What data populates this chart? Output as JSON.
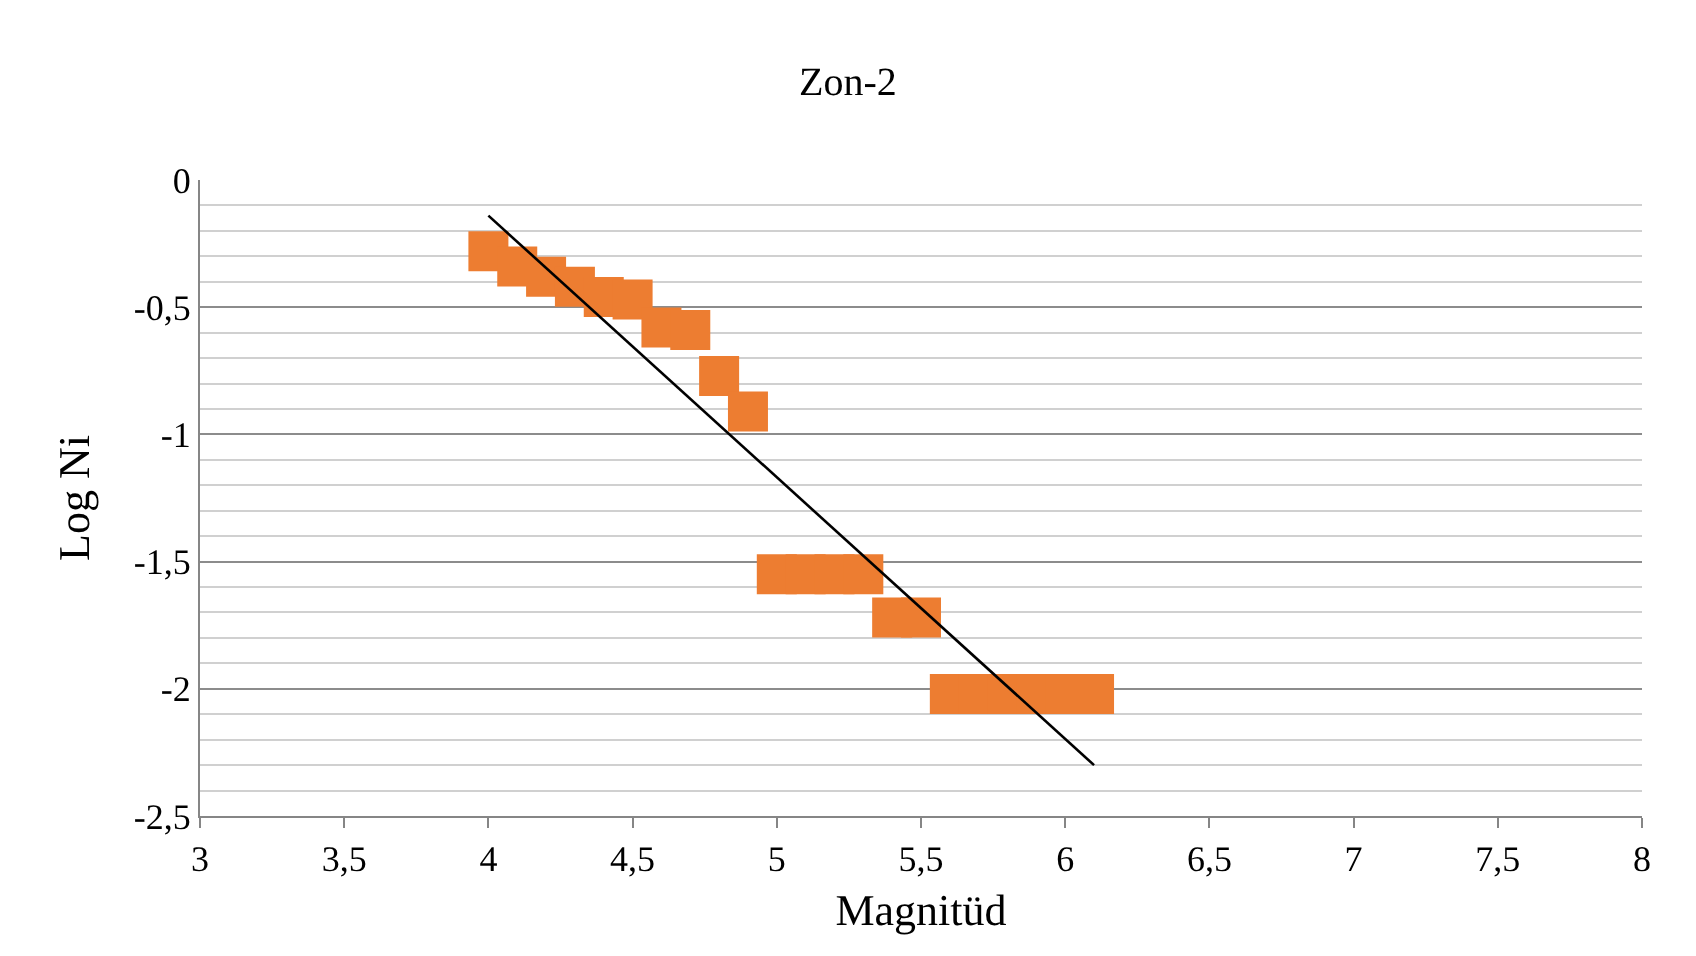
{
  "chart_data": {
    "type": "scatter",
    "title": "Zon-2",
    "xlabel": "Magnitüd",
    "ylabel": "Log Ni",
    "series": [
      {
        "color": "#ed7d31",
        "marker": "square",
        "x": [
          4.0,
          4.1,
          4.2,
          4.3,
          4.4,
          4.5,
          4.6,
          4.7,
          4.8,
          4.9,
          5.0,
          5.1,
          5.2,
          5.3,
          5.4,
          5.5,
          5.6,
          5.7,
          5.8,
          5.9,
          6.0,
          6.1
        ],
        "values": [
          -0.28,
          -0.34,
          -0.38,
          -0.42,
          -0.46,
          -0.47,
          -0.58,
          -0.59,
          -0.77,
          -0.91,
          -1.55,
          -1.55,
          -1.55,
          -1.55,
          -1.72,
          -1.72,
          -2.02,
          -2.02,
          -2.02,
          -2.02,
          -2.02,
          -2.02
        ]
      },
      {
        "type": "line",
        "color": "#000000",
        "marker": "none",
        "x": [
          4.0,
          6.1
        ],
        "values": [
          -0.14,
          -2.3
        ]
      }
    ],
    "xlim": [
      3,
      8
    ],
    "xticks": [
      3,
      {
        "value": 3.5,
        "label": "3,5"
      },
      4,
      {
        "value": 4.5,
        "label": "4,5"
      },
      5,
      {
        "value": 5.5,
        "label": "5,5"
      },
      6,
      {
        "value": 6.5,
        "label": "6,5"
      },
      7,
      {
        "value": 7.5,
        "label": "7,5"
      },
      8
    ],
    "ylim": [
      -2.5,
      0
    ],
    "yticks": [
      0,
      {
        "value": -0.5,
        "label": "-0,5"
      },
      -1,
      {
        "value": -1.5,
        "label": "-1,5"
      },
      -2,
      {
        "value": -2.5,
        "label": "-2,5"
      }
    ],
    "grid": "y"
  }
}
